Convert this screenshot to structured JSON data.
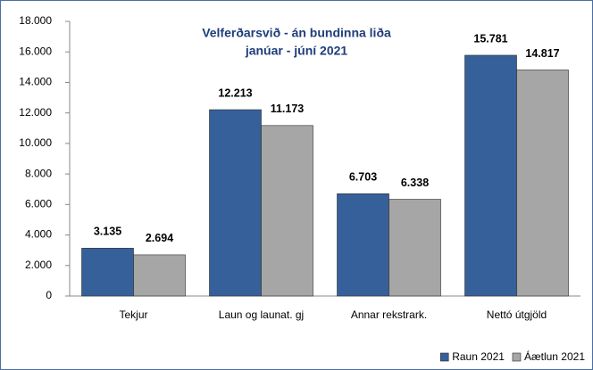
{
  "chart_data": {
    "type": "bar",
    "title": "Velferðarsvið - án bundinna liða",
    "subtitle": "janúar - júní 2021",
    "categories": [
      "Tekjur",
      "Laun og launat. gj",
      "Annar rekstrark.",
      "Nettó útgjöld"
    ],
    "series": [
      {
        "name": "Raun 2021",
        "color": "#36609a",
        "values": [
          3135,
          12213,
          6703,
          15781
        ],
        "value_labels": [
          "3.135",
          "12.213",
          "6.703",
          "15.781"
        ]
      },
      {
        "name": "Áætlun 2021",
        "color": "#a6a6a6",
        "values": [
          2694,
          11173,
          6338,
          14817
        ],
        "value_labels": [
          "2.694",
          "11.173",
          "6.338",
          "14.817"
        ]
      }
    ],
    "ylim": [
      0,
      18000
    ],
    "yticks": [
      0,
      {
        "value": 2000,
        "label": "2.000"
      },
      {
        "value": 4000,
        "label": "4.000"
      },
      {
        "value": 6000,
        "label": "6.000"
      },
      {
        "value": 8000,
        "label": "8.000"
      },
      {
        "value": 10000,
        "label": "10.000"
      },
      {
        "value": 12000,
        "label": "12.000"
      },
      {
        "value": 14000,
        "label": "14.000"
      },
      {
        "value": 16000,
        "label": "16.000"
      },
      {
        "value": 18000,
        "label": "18.000"
      }
    ],
    "grid": false,
    "legend": "bottom-right"
  }
}
